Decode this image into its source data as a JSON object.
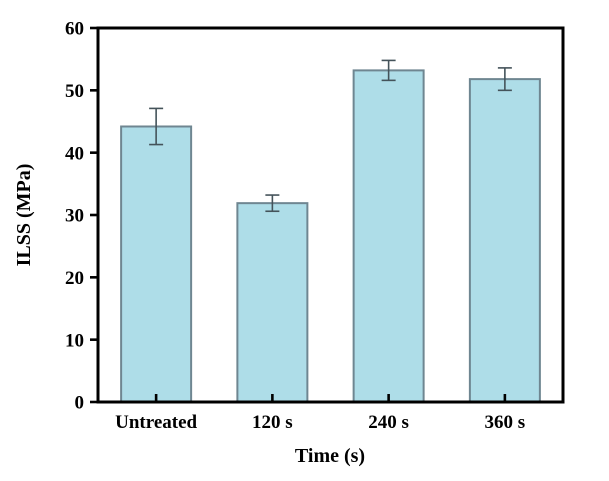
{
  "chart_data": {
    "type": "bar",
    "title": "",
    "categories": [
      "Untreated",
      "120 s",
      "240 s",
      "360 s"
    ],
    "values": [
      44.2,
      31.9,
      53.2,
      51.8
    ],
    "errors": [
      2.9,
      1.3,
      1.6,
      1.8
    ],
    "xlabel": "Time (s)",
    "ylabel": "ILSS (MPa)",
    "ylim": [
      0,
      60
    ],
    "yticks": [
      0,
      10,
      20,
      30,
      40,
      50,
      60
    ],
    "grid": false,
    "legend": null,
    "colors": {
      "bar_fill": "#aedde8",
      "bar_edge": "#6f8691",
      "error_bar": "#44535a",
      "axis": "#000000",
      "background": "#ffffff"
    }
  }
}
